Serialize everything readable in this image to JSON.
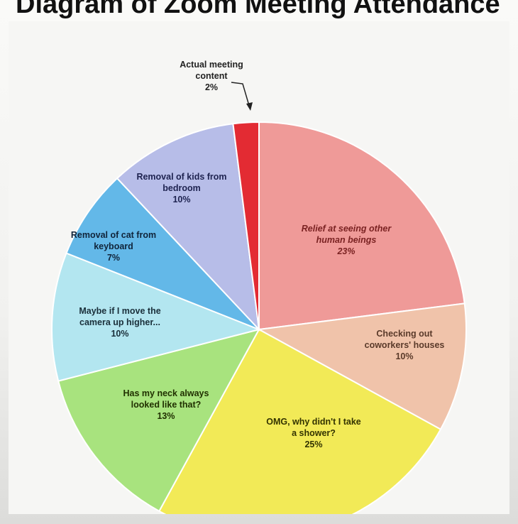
{
  "chart_data": {
    "type": "pie",
    "title": "Diagram of Zoom Meeting Attendance",
    "slices": [
      {
        "label_lines": [
          "Relief at seeing other",
          "human beings"
        ],
        "value": 23,
        "pct": "23%",
        "color": "#ef9a98",
        "text_color": "#7a2222"
      },
      {
        "label_lines": [
          "Checking out",
          "coworkers' houses"
        ],
        "value": 10,
        "pct": "10%",
        "color": "#f0c3aa",
        "text_color": "#5a3a2a"
      },
      {
        "label_lines": [
          "OMG, why didn't I take",
          "a shower?"
        ],
        "value": 25,
        "pct": "25%",
        "color": "#f2ea57",
        "text_color": "#333300"
      },
      {
        "label_lines": [
          "Has my neck always",
          "looked like that?"
        ],
        "value": 13,
        "pct": "13%",
        "color": "#a8e37e",
        "text_color": "#203000"
      },
      {
        "label_lines": [
          "Maybe if I move the",
          "camera up higher..."
        ],
        "value": 10,
        "pct": "10%",
        "color": "#b3e6f0",
        "text_color": "#1a2f3a"
      },
      {
        "label_lines": [
          "Removal of cat from",
          "keyboard"
        ],
        "value": 7,
        "pct": "7%",
        "color": "#63b8e8",
        "text_color": "#10243a"
      },
      {
        "label_lines": [
          "Removal of kids from",
          "bedroom"
        ],
        "value": 10,
        "pct": "10%",
        "color": "#b7bde8",
        "text_color": "#1e2350"
      },
      {
        "label_lines": [
          "Actual meeting",
          "content"
        ],
        "value": 2,
        "pct": "2%",
        "color": "#e32b33",
        "text_color": "#222222"
      }
    ]
  }
}
